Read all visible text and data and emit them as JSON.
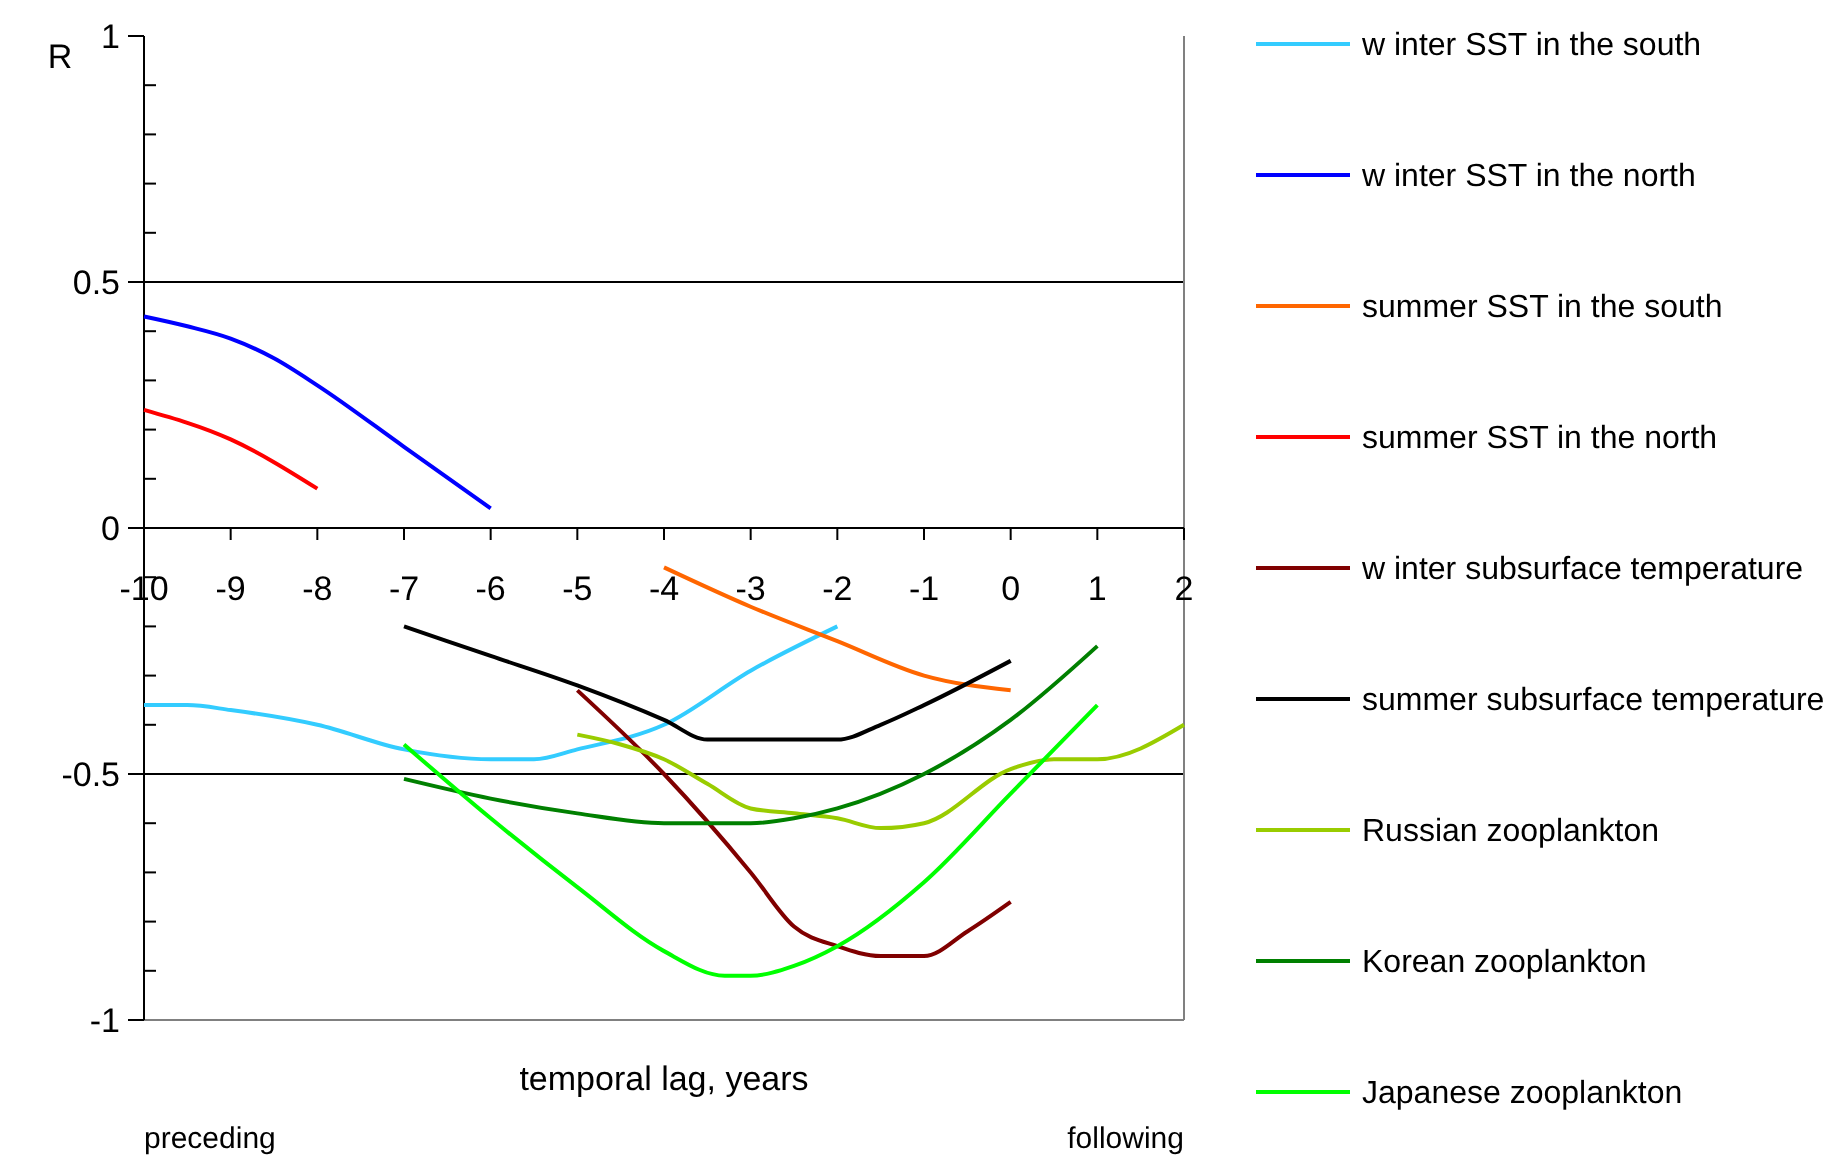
{
  "chart_data": {
    "type": "line",
    "ylabel": "R",
    "xlabel": "temporal lag, years",
    "annotations": [
      "preceding",
      "following"
    ],
    "xlim": [
      -10,
      2
    ],
    "xticks": [
      -10,
      -9,
      -8,
      -7,
      -6,
      -5,
      -4,
      -3,
      -2,
      -1,
      0,
      1,
      2
    ],
    "ylim": [
      -1,
      1
    ],
    "yticks": [
      {
        "value": -1,
        "label": "-1"
      },
      {
        "value": -0.9,
        "label": null
      },
      {
        "value": -0.8,
        "label": null
      },
      {
        "value": -0.7,
        "label": null
      },
      {
        "value": -0.6,
        "label": null
      },
      {
        "value": -0.5,
        "label": "-0.5"
      },
      {
        "value": -0.4,
        "label": null
      },
      {
        "value": -0.3,
        "label": null
      },
      {
        "value": -0.2,
        "label": null
      },
      {
        "value": -0.1,
        "label": null
      },
      {
        "value": 0,
        "label": "0"
      },
      {
        "value": 0.1,
        "label": null
      },
      {
        "value": 0.2,
        "label": null
      },
      {
        "value": 0.3,
        "label": null
      },
      {
        "value": 0.4,
        "label": null
      },
      {
        "value": 0.5,
        "label": "0.5"
      },
      {
        "value": 0.6,
        "label": null
      },
      {
        "value": 0.7,
        "label": null
      },
      {
        "value": 0.8,
        "label": null
      },
      {
        "value": 0.9,
        "label": null
      },
      {
        "value": 1,
        "label": "1"
      }
    ],
    "grid": "y",
    "legend": "right",
    "marker": "none",
    "line_style": "solid",
    "series": [
      {
        "name": "w inter SST in the south",
        "color": "#33ccff",
        "x": [
          -10,
          -9.5,
          -9,
          -8,
          -7,
          -6,
          -5.5,
          -5,
          -4,
          -3,
          -2
        ],
        "values": [
          -0.36,
          -0.36,
          -0.37,
          -0.4,
          -0.45,
          -0.47,
          -0.47,
          -0.45,
          -0.4,
          -0.29,
          -0.2
        ]
      },
      {
        "name": "w inter SST in the north",
        "color": "#0000ff",
        "x": [
          -10,
          -9.5,
          -9,
          -8.5,
          -8,
          -7,
          -6
        ],
        "values": [
          0.43,
          0.41,
          0.385,
          0.345,
          0.29,
          0.165,
          0.04
        ]
      },
      {
        "name": "summer SST in the south",
        "color": "#ff6600",
        "x": [
          -4,
          -3,
          -2,
          -1,
          0
        ],
        "values": [
          -0.08,
          -0.16,
          -0.23,
          -0.3,
          -0.33
        ]
      },
      {
        "name": "summer SST in the north",
        "color": "#ff0000",
        "x": [
          -10,
          -9,
          -8
        ],
        "values": [
          0.24,
          0.18,
          0.08
        ]
      },
      {
        "name": "w inter subsurface temperature",
        "color": "#800000",
        "x": [
          -5,
          -4,
          -3,
          -2.5,
          -2,
          -1.5,
          -1,
          -0.5,
          0
        ],
        "values": [
          -0.33,
          -0.5,
          -0.7,
          -0.81,
          -0.85,
          -0.87,
          -0.87,
          -0.82,
          -0.76
        ]
      },
      {
        "name": "summer subsurface temperature",
        "color": "#000000",
        "x": [
          -7,
          -6,
          -5,
          -4,
          -3.5,
          -3,
          -2.5,
          -2,
          -1.5,
          -1,
          0
        ],
        "values": [
          -0.2,
          -0.26,
          -0.32,
          -0.39,
          -0.43,
          -0.43,
          -0.43,
          -0.43,
          -0.4,
          -0.36,
          -0.27
        ]
      },
      {
        "name": "Russian zooplankton",
        "color": "#99cc00",
        "x": [
          -5,
          -4.5,
          -4,
          -3.5,
          -3,
          -2.5,
          -2,
          -1.5,
          -1,
          0,
          0.5,
          1,
          2
        ],
        "values": [
          -0.42,
          -0.44,
          -0.47,
          -0.52,
          -0.57,
          -0.58,
          -0.59,
          -0.61,
          -0.6,
          -0.49,
          -0.47,
          -0.47,
          -0.4
        ]
      },
      {
        "name": "Korean zooplankton",
        "color": "#008000",
        "x": [
          -7,
          -6,
          -5,
          -4,
          -3,
          -2.5,
          -2,
          -1,
          0,
          1
        ],
        "values": [
          -0.51,
          -0.55,
          -0.58,
          -0.6,
          -0.6,
          -0.59,
          -0.57,
          -0.5,
          -0.39,
          -0.24
        ]
      },
      {
        "name": "Japanese zooplankton",
        "color": "#00ff00",
        "x": [
          -7,
          -6,
          -5,
          -4,
          -3.3,
          -3,
          -2.5,
          -2,
          -1,
          0,
          1
        ],
        "values": [
          -0.44,
          -0.59,
          -0.73,
          -0.86,
          -0.91,
          -0.91,
          -0.89,
          -0.85,
          -0.72,
          -0.54,
          -0.36
        ]
      }
    ]
  }
}
